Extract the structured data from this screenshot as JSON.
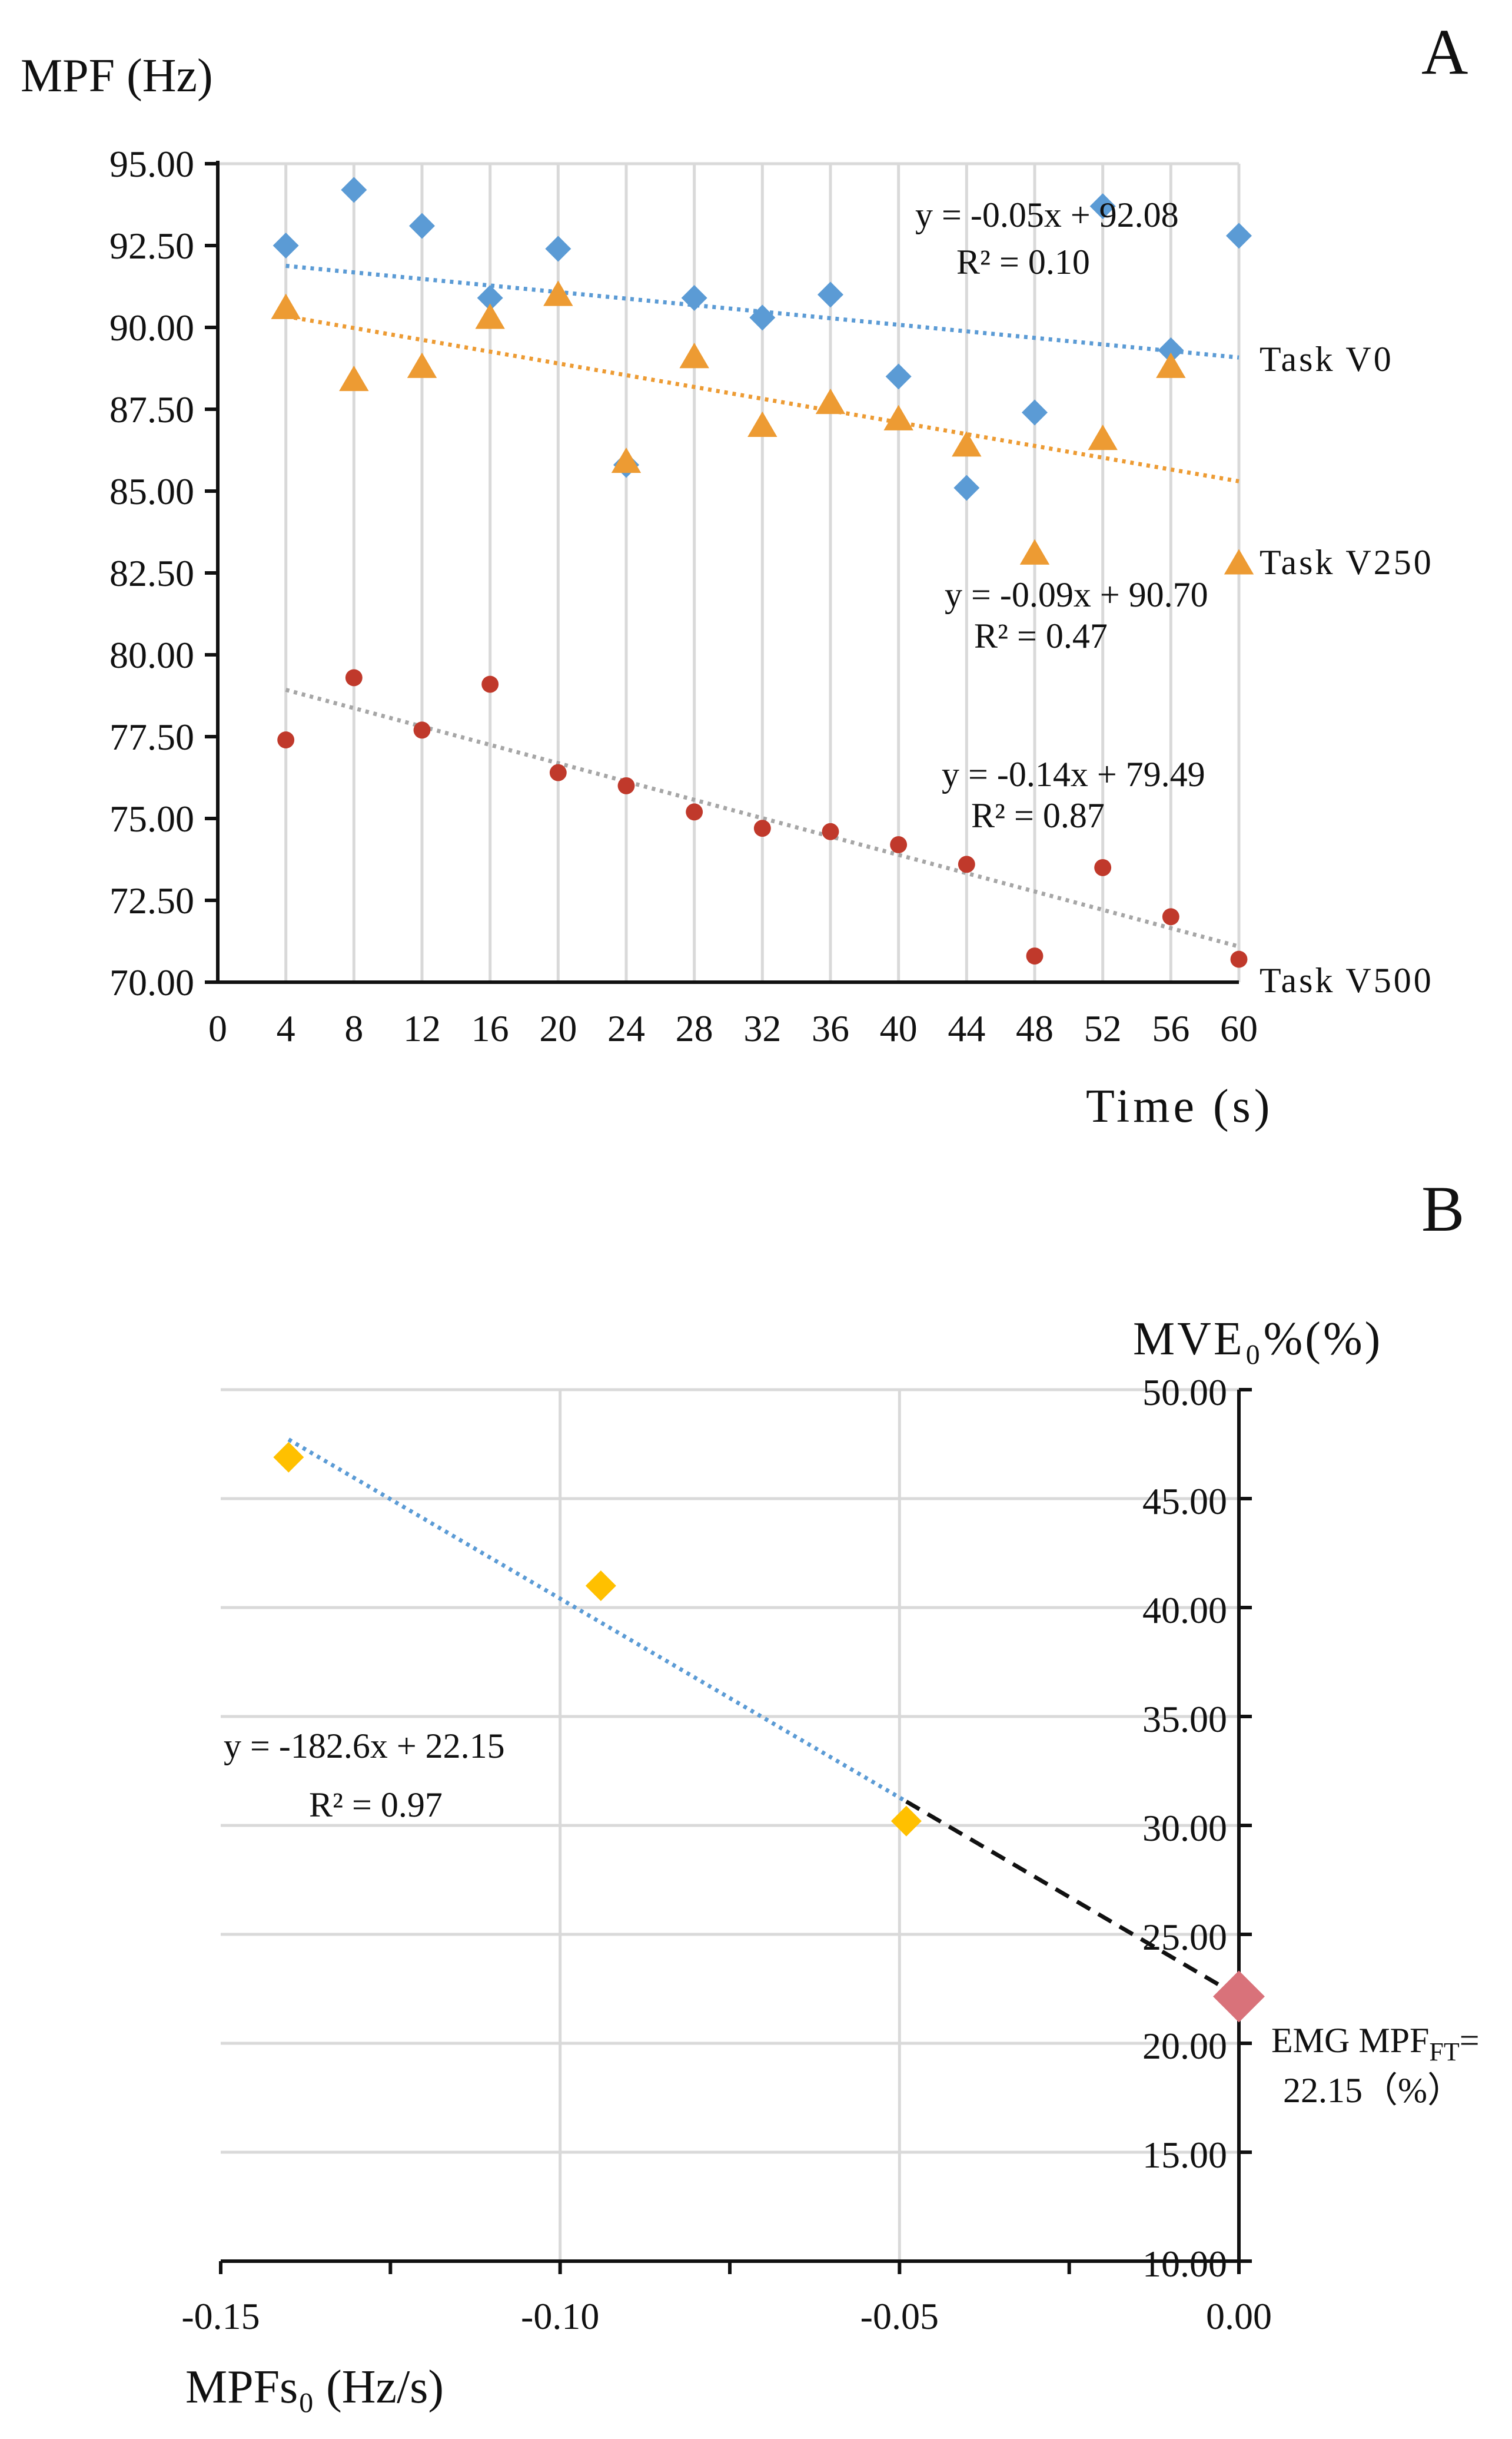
{
  "chart_data": [
    {
      "panel": "A",
      "type": "scatter",
      "ylabel": "MPF (Hz)",
      "xlabel": "Time (s)",
      "xlim": [
        0,
        60
      ],
      "ylim": [
        70,
        95
      ],
      "xticks": [
        "0",
        "4",
        "8",
        "12",
        "16",
        "20",
        "24",
        "28",
        "32",
        "36",
        "40",
        "44",
        "48",
        "52",
        "56",
        "60"
      ],
      "yticks": [
        "95.00",
        "92.50",
        "90.00",
        "87.50",
        "85.00",
        "82.50",
        "80.00",
        "77.50",
        "75.00",
        "72.50",
        "70.00"
      ],
      "grid": "vertical",
      "x": [
        4,
        8,
        12,
        16,
        20,
        24,
        28,
        32,
        36,
        40,
        44,
        48,
        52,
        56,
        60
      ],
      "series": [
        {
          "name": "Task V0",
          "marker": "diamond",
          "color": "#5b9bd5",
          "values": [
            92.5,
            94.2,
            93.1,
            90.9,
            92.4,
            85.8,
            90.9,
            90.3,
            91.0,
            88.5,
            85.1,
            87.4,
            93.7,
            89.3,
            92.8
          ],
          "trend": {
            "slope": -0.05,
            "intercept": 92.08,
            "equation": "y = -0.05x + 92.08",
            "r2": "R² = 0.10"
          }
        },
        {
          "name": "Task V250",
          "marker": "triangle",
          "color": "#ed9b33",
          "values": [
            90.6,
            88.4,
            88.8,
            90.3,
            91.0,
            85.9,
            89.1,
            87.0,
            87.7,
            87.2,
            86.4,
            83.1,
            86.6,
            88.8,
            82.8
          ],
          "trend": {
            "slope": -0.09,
            "intercept": 90.7,
            "equation": "y = -0.09x + 90.70",
            "r2": "R² = 0.47"
          }
        },
        {
          "name": "Task V500",
          "marker": "circle",
          "color": "#c0392b",
          "values": [
            77.4,
            79.3,
            77.7,
            79.1,
            76.4,
            76.0,
            75.2,
            74.7,
            74.6,
            74.2,
            73.6,
            70.8,
            73.5,
            72.0,
            70.7
          ],
          "trend": {
            "slope": -0.14,
            "intercept": 79.49,
            "equation": "y = -0.14x + 79.49",
            "r2": "R² = 0.87"
          }
        }
      ]
    },
    {
      "panel": "B",
      "type": "scatter",
      "ylabel": "MVE₀%(%)",
      "xlabel": "MPFs₀ (Hz/s)",
      "xlim": [
        -0.15,
        0.0
      ],
      "ylim": [
        10,
        50
      ],
      "xticks": [
        "-0.15",
        "-0.10",
        "-0.05",
        "0.00"
      ],
      "yticks": [
        "50.00",
        "45.00",
        "40.00",
        "35.00",
        "30.00",
        "25.00",
        "20.00",
        "15.00",
        "10.00"
      ],
      "grid": "both",
      "series": [
        {
          "name": "MVE₀%",
          "marker": "diamond",
          "color": "#ffc000",
          "x": [
            -0.14,
            -0.094,
            -0.049
          ],
          "values": [
            46.9,
            41.0,
            30.2
          ],
          "trend": {
            "slope": -182.6,
            "intercept": 22.15,
            "equation": "y = -182.6x + 22.15",
            "r2": "R² = 0.97"
          }
        }
      ],
      "extrapolation": {
        "x": 0.0,
        "value": 22.15,
        "color": "#d9727a",
        "label_line1": "EMG MPF",
        "label_sub": "FT",
        "label_line2": "=",
        "label_line3": "22.15（%）"
      }
    }
  ]
}
